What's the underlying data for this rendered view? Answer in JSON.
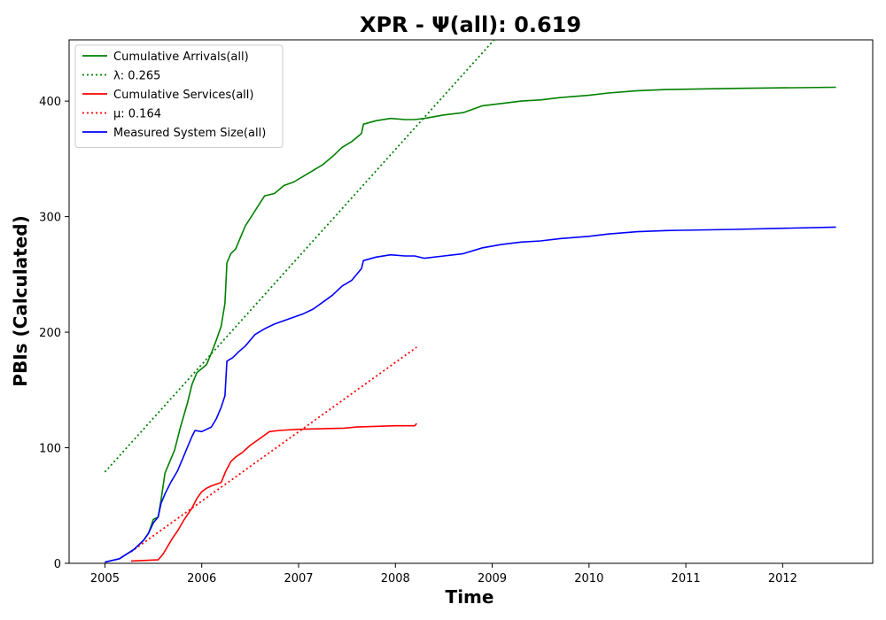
{
  "chart_data": {
    "type": "line",
    "title": "XPR -  Ψ(all): 0.619",
    "xlabel": "Time",
    "ylabel": "PBIs (Calculated)",
    "xlim": [
      2004.63,
      2012.93
    ],
    "ylim": [
      0,
      453
    ],
    "x_ticks": [
      "2005",
      "2006",
      "2007",
      "2008",
      "2009",
      "2010",
      "2011",
      "2012"
    ],
    "y_ticks": [
      0,
      100,
      200,
      300,
      400
    ],
    "grid": false,
    "legend_position": "upper-left",
    "series": [
      {
        "name": "Cumulative Arrivals(all)",
        "color": "#008000",
        "style": "solid",
        "points": [
          [
            2005.0,
            1
          ],
          [
            2005.15,
            4
          ],
          [
            2005.3,
            12
          ],
          [
            2005.4,
            20
          ],
          [
            2005.45,
            26
          ],
          [
            2005.5,
            38
          ],
          [
            2005.55,
            40
          ],
          [
            2005.58,
            55
          ],
          [
            2005.62,
            78
          ],
          [
            2005.68,
            90
          ],
          [
            2005.72,
            98
          ],
          [
            2005.78,
            118
          ],
          [
            2005.85,
            138
          ],
          [
            2005.9,
            155
          ],
          [
            2005.95,
            165
          ],
          [
            2006.05,
            172
          ],
          [
            2006.1,
            182
          ],
          [
            2006.15,
            193
          ],
          [
            2006.2,
            205
          ],
          [
            2006.24,
            225
          ],
          [
            2006.26,
            260
          ],
          [
            2006.3,
            268
          ],
          [
            2006.35,
            272
          ],
          [
            2006.4,
            282
          ],
          [
            2006.45,
            292
          ],
          [
            2006.55,
            305
          ],
          [
            2006.65,
            318
          ],
          [
            2006.75,
            320
          ],
          [
            2006.85,
            327
          ],
          [
            2006.95,
            330
          ],
          [
            2007.05,
            335
          ],
          [
            2007.15,
            340
          ],
          [
            2007.25,
            345
          ],
          [
            2007.35,
            352
          ],
          [
            2007.45,
            360
          ],
          [
            2007.55,
            365
          ],
          [
            2007.65,
            372
          ],
          [
            2007.67,
            380
          ],
          [
            2007.8,
            383
          ],
          [
            2007.95,
            385
          ],
          [
            2008.1,
            384
          ],
          [
            2008.2,
            384
          ],
          [
            2008.3,
            385
          ],
          [
            2008.5,
            388
          ],
          [
            2008.7,
            390
          ],
          [
            2008.9,
            396
          ],
          [
            2009.1,
            398
          ],
          [
            2009.3,
            400
          ],
          [
            2009.5,
            401
          ],
          [
            2009.7,
            403
          ],
          [
            2010.0,
            405
          ],
          [
            2010.2,
            407
          ],
          [
            2010.5,
            409
          ],
          [
            2010.8,
            410
          ],
          [
            2011.5,
            411
          ],
          [
            2012.55,
            412
          ]
        ]
      },
      {
        "name": "λ: 0.265",
        "color": "#008000",
        "style": "dotted",
        "points": [
          [
            2005.0,
            79
          ],
          [
            2009.02,
            453
          ]
        ]
      },
      {
        "name": "Cumulative Services(all)",
        "color": "#ff0000",
        "style": "solid",
        "points": [
          [
            2005.27,
            2
          ],
          [
            2005.55,
            3
          ],
          [
            2005.6,
            8
          ],
          [
            2005.65,
            15
          ],
          [
            2005.7,
            22
          ],
          [
            2005.75,
            28
          ],
          [
            2005.82,
            38
          ],
          [
            2005.9,
            48
          ],
          [
            2005.95,
            56
          ],
          [
            2006.0,
            62
          ],
          [
            2006.05,
            65
          ],
          [
            2006.1,
            67
          ],
          [
            2006.2,
            70
          ],
          [
            2006.25,
            80
          ],
          [
            2006.3,
            88
          ],
          [
            2006.35,
            92
          ],
          [
            2006.42,
            96
          ],
          [
            2006.5,
            102
          ],
          [
            2006.6,
            108
          ],
          [
            2006.7,
            114
          ],
          [
            2006.8,
            115
          ],
          [
            2007.0,
            116
          ],
          [
            2007.47,
            117
          ],
          [
            2007.6,
            118
          ],
          [
            2008.0,
            119
          ],
          [
            2008.2,
            119
          ],
          [
            2008.22,
            121
          ]
        ]
      },
      {
        "name": "μ: 0.164",
        "color": "#ff0000",
        "style": "dotted",
        "points": [
          [
            2005.27,
            10
          ],
          [
            2008.22,
            187
          ]
        ]
      },
      {
        "name": "Measured System Size(all)",
        "color": "#0000ff",
        "style": "solid",
        "points": [
          [
            2005.0,
            1
          ],
          [
            2005.15,
            4
          ],
          [
            2005.3,
            12
          ],
          [
            2005.4,
            20
          ],
          [
            2005.45,
            26
          ],
          [
            2005.5,
            35
          ],
          [
            2005.55,
            40
          ],
          [
            2005.58,
            52
          ],
          [
            2005.62,
            60
          ],
          [
            2005.68,
            70
          ],
          [
            2005.75,
            80
          ],
          [
            2005.8,
            90
          ],
          [
            2005.85,
            100
          ],
          [
            2005.9,
            110
          ],
          [
            2005.93,
            115
          ],
          [
            2006.0,
            114
          ],
          [
            2006.1,
            118
          ],
          [
            2006.15,
            125
          ],
          [
            2006.2,
            135
          ],
          [
            2006.24,
            145
          ],
          [
            2006.26,
            175
          ],
          [
            2006.32,
            178
          ],
          [
            2006.38,
            183
          ],
          [
            2006.45,
            188
          ],
          [
            2006.55,
            198
          ],
          [
            2006.65,
            203
          ],
          [
            2006.75,
            207
          ],
          [
            2006.85,
            210
          ],
          [
            2006.95,
            213
          ],
          [
            2007.05,
            216
          ],
          [
            2007.15,
            220
          ],
          [
            2007.25,
            226
          ],
          [
            2007.35,
            232
          ],
          [
            2007.45,
            240
          ],
          [
            2007.55,
            245
          ],
          [
            2007.65,
            255
          ],
          [
            2007.67,
            262
          ],
          [
            2007.8,
            265
          ],
          [
            2007.95,
            267
          ],
          [
            2008.1,
            266
          ],
          [
            2008.2,
            266
          ],
          [
            2008.3,
            264
          ],
          [
            2008.5,
            266
          ],
          [
            2008.7,
            268
          ],
          [
            2008.9,
            273
          ],
          [
            2009.1,
            276
          ],
          [
            2009.3,
            278
          ],
          [
            2009.5,
            279
          ],
          [
            2009.7,
            281
          ],
          [
            2010.0,
            283
          ],
          [
            2010.2,
            285
          ],
          [
            2010.5,
            287
          ],
          [
            2010.8,
            288
          ],
          [
            2011.5,
            289
          ],
          [
            2012.55,
            291
          ]
        ]
      }
    ]
  }
}
